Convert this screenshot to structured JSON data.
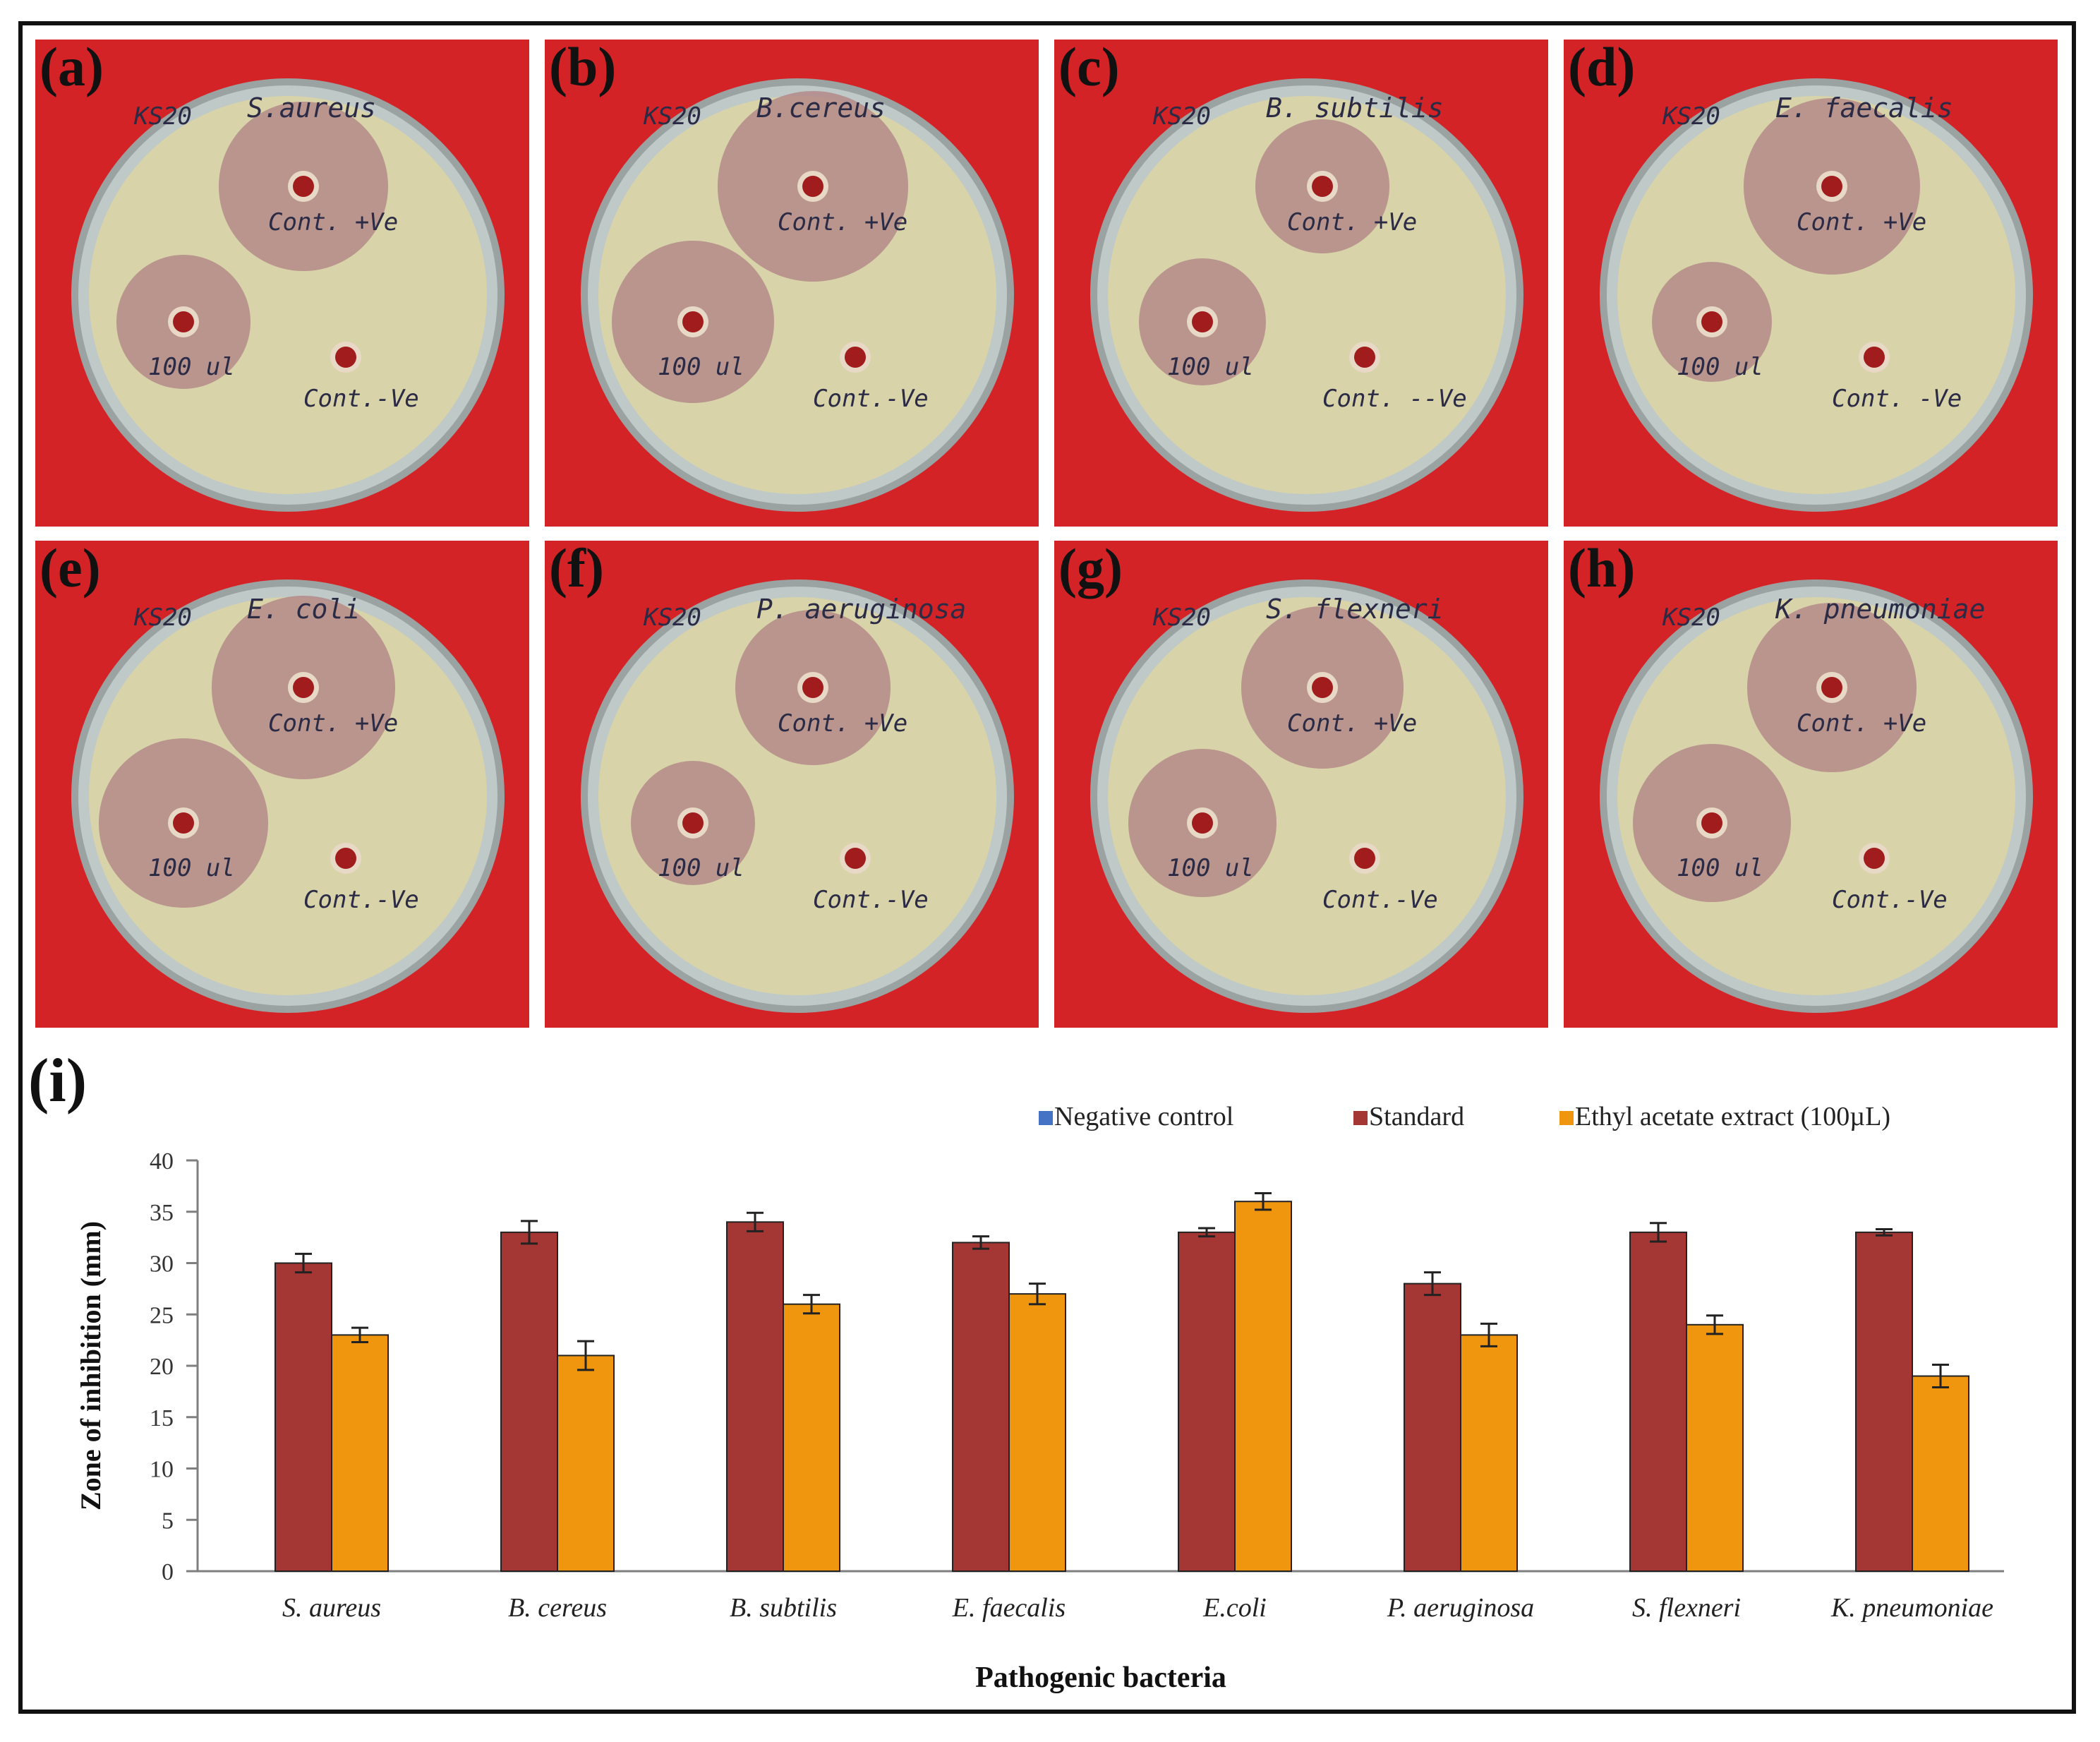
{
  "panels": [
    {
      "label": "(a)",
      "strain": "KS20",
      "organism": "S.aureus",
      "plus": "Cont. +Ve",
      "sample": "100 ul",
      "minus": "Cont.-Ve"
    },
    {
      "label": "(b)",
      "strain": "KS20",
      "organism": "B.cereus",
      "plus": "Cont. +Ve",
      "sample": "100 ul",
      "minus": "Cont.-Ve"
    },
    {
      "label": "(c)",
      "strain": "KS20",
      "organism": "B. subtilis",
      "plus": "Cont. +Ve",
      "sample": "100 ul",
      "minus": "Cont. --Ve"
    },
    {
      "label": "(d)",
      "strain": "KS20",
      "organism": "E. faecalis",
      "plus": "Cont. +Ve",
      "sample": "100 ul",
      "minus": "Cont. -Ve"
    },
    {
      "label": "(e)",
      "strain": "KS20",
      "organism": "E. coli",
      "plus": "Cont. +Ve",
      "sample": "100 ul",
      "minus": "Cont.-Ve"
    },
    {
      "label": "(f)",
      "strain": "KS20",
      "organism": "P. aeruginosa",
      "plus": "Cont. +Ve",
      "sample": "100 ul",
      "minus": "Cont.-Ve"
    },
    {
      "label": "(g)",
      "strain": "KS20",
      "organism": "S. flexneri",
      "plus": "Cont. +Ve",
      "sample": "100 ul",
      "minus": "Cont.-Ve"
    },
    {
      "label": "(h)",
      "strain": "KS20",
      "organism": "K. pneumoniae",
      "plus": "Cont. +Ve",
      "sample": "100 ul",
      "minus": "Cont.-Ve"
    }
  ],
  "chart_label": "(i)",
  "colors": {
    "negative": "#4472c4",
    "standard": "#a43634",
    "extract": "#f0960e",
    "plate_red": "#d42326"
  },
  "chart_data": {
    "type": "bar",
    "title": "",
    "xlabel": "Pathogenic bacteria",
    "ylabel": "Zone of inhibition (mm)",
    "ylim": [
      0,
      40
    ],
    "yticks": [
      0,
      5,
      10,
      15,
      20,
      25,
      30,
      35,
      40
    ],
    "grid": false,
    "legend_position": "top-right",
    "categories": [
      "S. aureus",
      "B. cereus",
      "B. subtilis",
      "E. faecalis",
      "E.coli",
      "P. aeruginosa",
      "S. flexneri",
      "K. pneumoniae"
    ],
    "series": [
      {
        "name": "Negative control",
        "color": "#4472c4",
        "values": [
          0,
          0,
          0,
          0,
          0,
          0,
          0,
          0
        ],
        "errors": [
          0,
          0,
          0,
          0,
          0,
          0,
          0,
          0
        ]
      },
      {
        "name": "Standard",
        "color": "#a43634",
        "values": [
          30,
          33,
          34,
          32,
          33,
          28,
          33,
          33
        ],
        "errors": [
          0.9,
          1.1,
          0.9,
          0.6,
          0.4,
          1.1,
          0.9,
          0.3
        ]
      },
      {
        "name": "Ethyl acetate extract (100µL)",
        "color": "#f0960e",
        "values": [
          23,
          21,
          26,
          27,
          36,
          23,
          24,
          19
        ],
        "errors": [
          0.7,
          1.4,
          0.9,
          1.0,
          0.8,
          1.1,
          0.9,
          1.1
        ]
      }
    ]
  }
}
